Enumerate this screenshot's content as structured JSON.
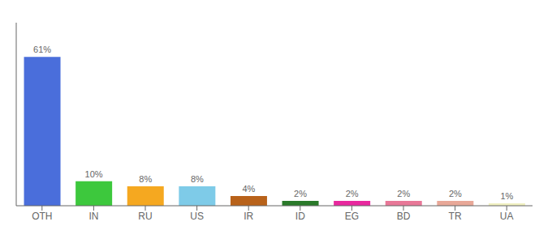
{
  "chart_data": {
    "type": "bar",
    "categories": [
      "OTH",
      "IN",
      "RU",
      "US",
      "IR",
      "ID",
      "EG",
      "BD",
      "TR",
      "UA"
    ],
    "values": [
      61,
      10,
      8,
      8,
      4,
      2,
      2,
      2,
      2,
      1
    ],
    "value_labels": [
      "61%",
      "10%",
      "8%",
      "8%",
      "4%",
      "2%",
      "2%",
      "2%",
      "2%",
      "1%"
    ],
    "colors": [
      "#4a6edb",
      "#3dc83d",
      "#f5a820",
      "#7ecbe8",
      "#b8621a",
      "#2a7a2a",
      "#e8289e",
      "#e87898",
      "#e8a898",
      "#f0f0c0"
    ],
    "ylim": [
      0,
      75
    ],
    "data_labels": true,
    "tick_labels": "x"
  }
}
